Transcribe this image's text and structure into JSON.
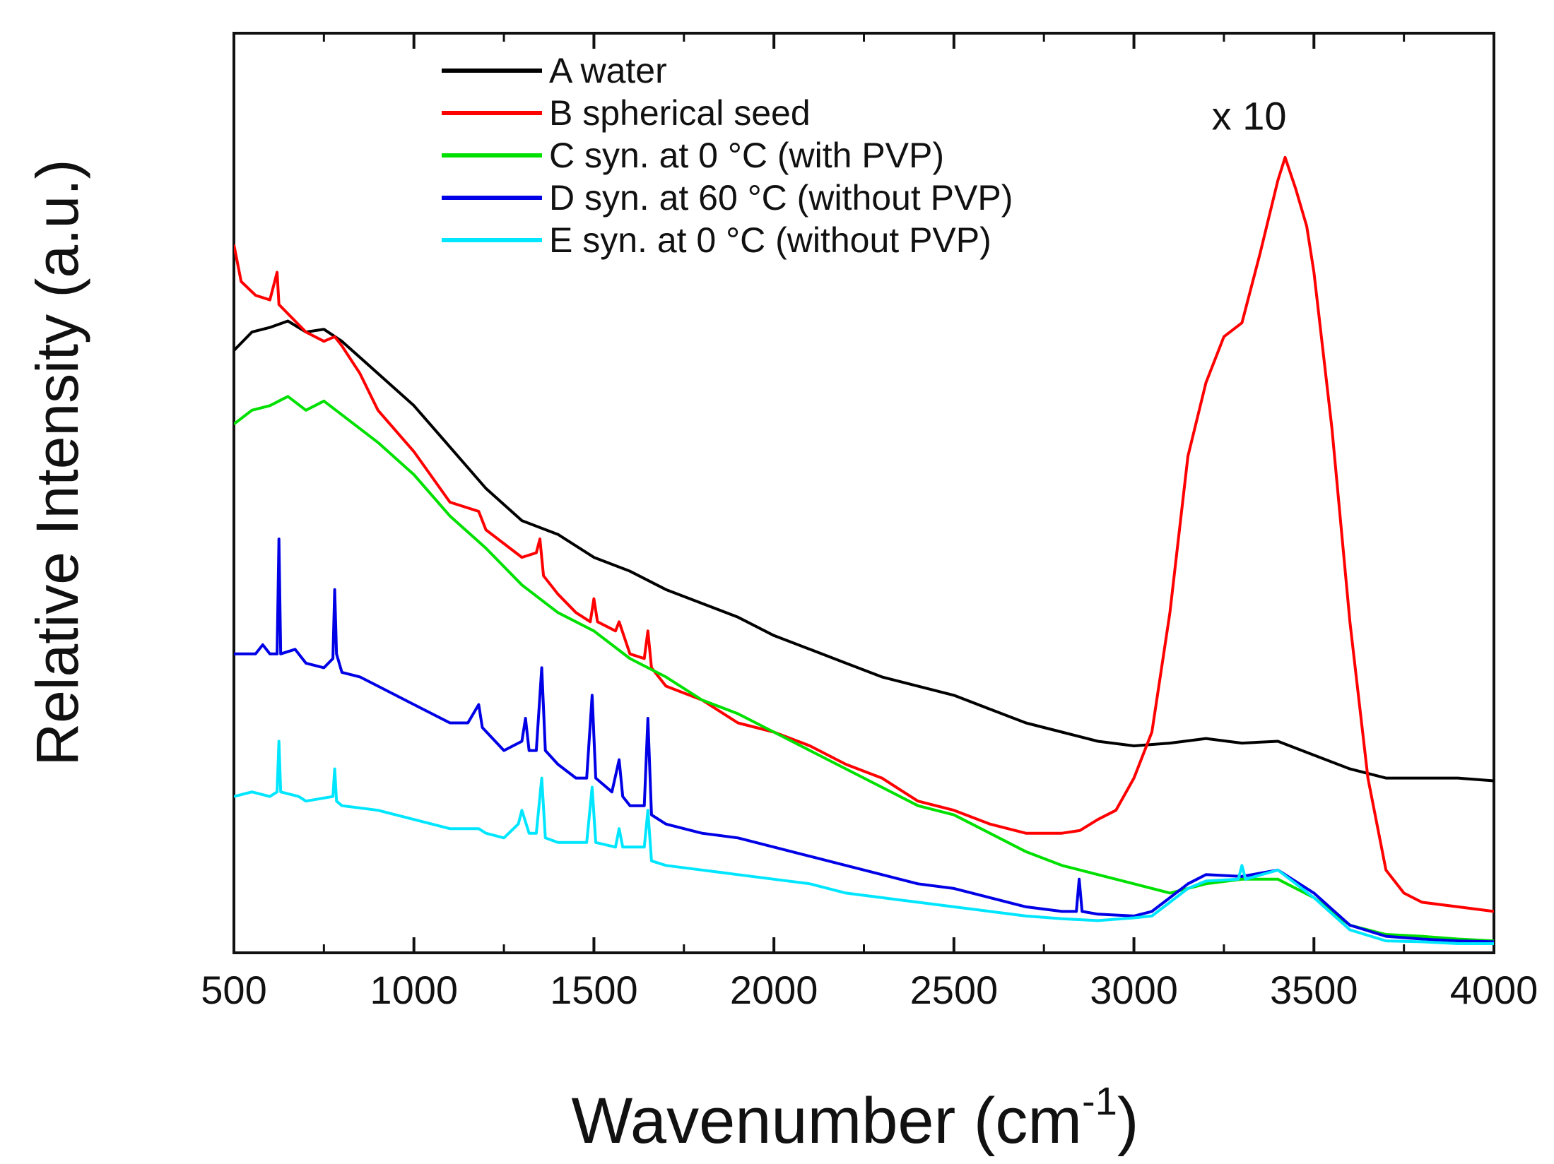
{
  "chart_data": {
    "type": "line",
    "xlabel": "Wavenumber (cm",
    "xlabel_sup": "-1",
    "xlabel_close": ")",
    "ylabel": "Relative Intensity (a.u.)",
    "xlim": [
      500,
      4000
    ],
    "ylim": [
      0,
      100
    ],
    "x_ticks": [
      500,
      1000,
      1500,
      2000,
      2500,
      3000,
      3500,
      4000
    ],
    "y_ticks_shown": false,
    "grid": false,
    "legend_position": "top-left",
    "annotation": {
      "text": "x 10",
      "x": 3320,
      "y": 89.5
    },
    "series": [
      {
        "name": "A water",
        "color": "#000000",
        "points": [
          [
            500,
            65.5
          ],
          [
            550,
            67.5
          ],
          [
            600,
            68
          ],
          [
            650,
            68.7
          ],
          [
            700,
            67.5
          ],
          [
            750,
            67.8
          ],
          [
            800,
            66.5
          ],
          [
            900,
            63
          ],
          [
            1000,
            59.5
          ],
          [
            1100,
            55
          ],
          [
            1200,
            50.5
          ],
          [
            1300,
            47
          ],
          [
            1400,
            45.5
          ],
          [
            1500,
            43
          ],
          [
            1600,
            41.5
          ],
          [
            1700,
            39.5
          ],
          [
            1800,
            38
          ],
          [
            1900,
            36.5
          ],
          [
            2000,
            34.5
          ],
          [
            2100,
            33
          ],
          [
            2200,
            31.5
          ],
          [
            2300,
            30
          ],
          [
            2400,
            29
          ],
          [
            2500,
            28
          ],
          [
            2600,
            26.5
          ],
          [
            2700,
            25
          ],
          [
            2800,
            24
          ],
          [
            2900,
            23
          ],
          [
            3000,
            22.5
          ],
          [
            3100,
            22.8
          ],
          [
            3200,
            23.3
          ],
          [
            3300,
            22.8
          ],
          [
            3400,
            23
          ],
          [
            3500,
            21.5
          ],
          [
            3600,
            20
          ],
          [
            3700,
            19
          ],
          [
            3800,
            19
          ],
          [
            3900,
            19
          ],
          [
            4000,
            18.7
          ]
        ]
      },
      {
        "name": "B spherical seed",
        "color": "#ff0000",
        "points": [
          [
            500,
            77
          ],
          [
            520,
            73
          ],
          [
            560,
            71.5
          ],
          [
            600,
            71
          ],
          [
            620,
            74
          ],
          [
            625,
            70.5
          ],
          [
            650,
            69.5
          ],
          [
            700,
            67.5
          ],
          [
            750,
            66.5
          ],
          [
            780,
            67
          ],
          [
            800,
            66
          ],
          [
            850,
            63
          ],
          [
            900,
            59
          ],
          [
            1000,
            54.5
          ],
          [
            1100,
            49
          ],
          [
            1180,
            48
          ],
          [
            1200,
            46
          ],
          [
            1300,
            43
          ],
          [
            1340,
            43.5
          ],
          [
            1350,
            45
          ],
          [
            1360,
            41
          ],
          [
            1400,
            39
          ],
          [
            1450,
            37
          ],
          [
            1490,
            36
          ],
          [
            1500,
            38.5
          ],
          [
            1510,
            36
          ],
          [
            1560,
            35
          ],
          [
            1570,
            36
          ],
          [
            1600,
            32.5
          ],
          [
            1640,
            32
          ],
          [
            1650,
            35
          ],
          [
            1660,
            31
          ],
          [
            1700,
            29
          ],
          [
            1800,
            27.5
          ],
          [
            1900,
            25
          ],
          [
            2000,
            24
          ],
          [
            2100,
            22.5
          ],
          [
            2200,
            20.5
          ],
          [
            2300,
            19
          ],
          [
            2400,
            16.5
          ],
          [
            2500,
            15.5
          ],
          [
            2600,
            14
          ],
          [
            2700,
            13
          ],
          [
            2800,
            13
          ],
          [
            2850,
            13.3
          ],
          [
            2900,
            14.5
          ],
          [
            2950,
            15.5
          ],
          [
            3000,
            19
          ],
          [
            3050,
            24
          ],
          [
            3100,
            37
          ],
          [
            3150,
            54
          ],
          [
            3200,
            62
          ],
          [
            3250,
            67
          ],
          [
            3300,
            68.5
          ],
          [
            3350,
            76
          ],
          [
            3400,
            84
          ],
          [
            3420,
            86.5
          ],
          [
            3450,
            83
          ],
          [
            3480,
            79
          ],
          [
            3500,
            74
          ],
          [
            3550,
            57
          ],
          [
            3600,
            36
          ],
          [
            3650,
            19
          ],
          [
            3700,
            9
          ],
          [
            3750,
            6.5
          ],
          [
            3800,
            5.5
          ],
          [
            3900,
            5
          ],
          [
            4000,
            4.5
          ]
        ]
      },
      {
        "name": "C syn. at 0 °C (with PVP)",
        "color": "#00e000",
        "points": [
          [
            500,
            57.5
          ],
          [
            550,
            59
          ],
          [
            600,
            59.5
          ],
          [
            650,
            60.5
          ],
          [
            700,
            59
          ],
          [
            750,
            60
          ],
          [
            800,
            58.5
          ],
          [
            900,
            55.5
          ],
          [
            1000,
            52
          ],
          [
            1100,
            47.5
          ],
          [
            1200,
            44
          ],
          [
            1300,
            40
          ],
          [
            1400,
            37
          ],
          [
            1500,
            35
          ],
          [
            1600,
            32
          ],
          [
            1700,
            30
          ],
          [
            1800,
            27.5
          ],
          [
            1900,
            26
          ],
          [
            2000,
            24
          ],
          [
            2100,
            22
          ],
          [
            2200,
            20
          ],
          [
            2300,
            18
          ],
          [
            2400,
            16
          ],
          [
            2500,
            15
          ],
          [
            2600,
            13
          ],
          [
            2700,
            11
          ],
          [
            2800,
            9.5
          ],
          [
            2900,
            8.5
          ],
          [
            3000,
            7.5
          ],
          [
            3100,
            6.5
          ],
          [
            3200,
            7.5
          ],
          [
            3300,
            8
          ],
          [
            3400,
            8
          ],
          [
            3500,
            6
          ],
          [
            3600,
            3
          ],
          [
            3700,
            2
          ],
          [
            3800,
            1.8
          ],
          [
            3900,
            1.5
          ],
          [
            4000,
            1.3
          ]
        ]
      },
      {
        "name": "D syn. at 60 °C (without PVP)",
        "color": "#0000e6",
        "points": [
          [
            500,
            32.5
          ],
          [
            560,
            32.5
          ],
          [
            580,
            33.5
          ],
          [
            600,
            32.5
          ],
          [
            620,
            32.5
          ],
          [
            625,
            45
          ],
          [
            630,
            32.5
          ],
          [
            670,
            33
          ],
          [
            700,
            31.5
          ],
          [
            750,
            31
          ],
          [
            775,
            32
          ],
          [
            780,
            39.5
          ],
          [
            785,
            32.5
          ],
          [
            800,
            30.5
          ],
          [
            850,
            30
          ],
          [
            900,
            29
          ],
          [
            1000,
            27
          ],
          [
            1100,
            25
          ],
          [
            1150,
            25
          ],
          [
            1180,
            27
          ],
          [
            1190,
            24.5
          ],
          [
            1250,
            22
          ],
          [
            1300,
            23
          ],
          [
            1310,
            25.5
          ],
          [
            1320,
            22
          ],
          [
            1340,
            22
          ],
          [
            1355,
            31
          ],
          [
            1365,
            22
          ],
          [
            1400,
            20.5
          ],
          [
            1450,
            19
          ],
          [
            1480,
            19
          ],
          [
            1495,
            28
          ],
          [
            1505,
            19
          ],
          [
            1550,
            17.5
          ],
          [
            1570,
            21
          ],
          [
            1580,
            17
          ],
          [
            1600,
            16
          ],
          [
            1640,
            16
          ],
          [
            1650,
            25.5
          ],
          [
            1660,
            15
          ],
          [
            1700,
            14
          ],
          [
            1800,
            13
          ],
          [
            1900,
            12.5
          ],
          [
            2000,
            11.5
          ],
          [
            2100,
            10.5
          ],
          [
            2200,
            9.5
          ],
          [
            2300,
            8.5
          ],
          [
            2400,
            7.5
          ],
          [
            2500,
            7
          ],
          [
            2600,
            6
          ],
          [
            2700,
            5
          ],
          [
            2800,
            4.5
          ],
          [
            2840,
            4.5
          ],
          [
            2848,
            8
          ],
          [
            2856,
            4.5
          ],
          [
            2900,
            4.2
          ],
          [
            3000,
            4
          ],
          [
            3050,
            4.5
          ],
          [
            3100,
            6
          ],
          [
            3150,
            7.5
          ],
          [
            3200,
            8.5
          ],
          [
            3300,
            8.3
          ],
          [
            3400,
            9
          ],
          [
            3500,
            6.5
          ],
          [
            3600,
            3
          ],
          [
            3700,
            1.8
          ],
          [
            3800,
            1.5
          ],
          [
            3900,
            1.3
          ],
          [
            4000,
            1.2
          ]
        ]
      },
      {
        "name": "E syn. at 0 °C (without PVP)",
        "color": "#00e6ff",
        "points": [
          [
            500,
            17
          ],
          [
            550,
            17.5
          ],
          [
            600,
            17
          ],
          [
            620,
            17.5
          ],
          [
            625,
            23
          ],
          [
            630,
            17.5
          ],
          [
            680,
            17
          ],
          [
            700,
            16.5
          ],
          [
            775,
            17
          ],
          [
            780,
            20
          ],
          [
            785,
            16.5
          ],
          [
            800,
            16
          ],
          [
            900,
            15.5
          ],
          [
            1000,
            14.5
          ],
          [
            1100,
            13.5
          ],
          [
            1180,
            13.5
          ],
          [
            1200,
            13
          ],
          [
            1250,
            12.5
          ],
          [
            1290,
            14
          ],
          [
            1300,
            15.5
          ],
          [
            1320,
            13
          ],
          [
            1340,
            13
          ],
          [
            1355,
            19
          ],
          [
            1365,
            12.5
          ],
          [
            1400,
            12
          ],
          [
            1480,
            12
          ],
          [
            1495,
            18
          ],
          [
            1505,
            12
          ],
          [
            1560,
            11.5
          ],
          [
            1570,
            13.5
          ],
          [
            1580,
            11.5
          ],
          [
            1640,
            11.5
          ],
          [
            1650,
            15.5
          ],
          [
            1660,
            10
          ],
          [
            1700,
            9.5
          ],
          [
            1800,
            9
          ],
          [
            1900,
            8.5
          ],
          [
            2000,
            8
          ],
          [
            2100,
            7.5
          ],
          [
            2200,
            6.5
          ],
          [
            2300,
            6
          ],
          [
            2400,
            5.5
          ],
          [
            2500,
            5
          ],
          [
            2600,
            4.5
          ],
          [
            2700,
            4
          ],
          [
            2800,
            3.7
          ],
          [
            2900,
            3.5
          ],
          [
            3000,
            3.8
          ],
          [
            3050,
            4
          ],
          [
            3100,
            5.5
          ],
          [
            3150,
            7
          ],
          [
            3200,
            7.8
          ],
          [
            3290,
            8
          ],
          [
            3300,
            9.5
          ],
          [
            3310,
            8
          ],
          [
            3400,
            9
          ],
          [
            3500,
            6
          ],
          [
            3600,
            2.5
          ],
          [
            3700,
            1.3
          ],
          [
            3800,
            1.2
          ],
          [
            3900,
            1
          ],
          [
            4000,
            1
          ]
        ]
      }
    ]
  }
}
